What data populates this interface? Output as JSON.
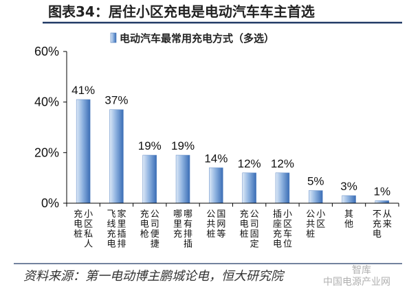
{
  "figure": {
    "title": "图表34：居住小区充电是电动汽车车主首选",
    "source": "资料来源：第一电动博主鹏城论电，恒大研究院",
    "watermark": [
      "智库",
      "中国电源产业网"
    ]
  },
  "colors": {
    "title_rule": "#1f3864",
    "bar_light": "#dde9f7",
    "bar_mid": "#8fb3e0",
    "bar_dark": "#3a6db5",
    "axis": "#000000"
  },
  "chart_data": {
    "type": "bar",
    "title": "",
    "legend": {
      "label": "电动汽车最常用充电方式（多选）",
      "placement": "top"
    },
    "categories": [
      "小区私人充电桩",
      "家里插排飞线充电",
      "公司便捷充电枪",
      "哪有排插哪里充",
      "公共桩",
      "公司固定充电桩",
      "小区车位插座充电",
      "公共桩小区",
      "其他",
      "不充电从来"
    ],
    "category_label_columns": [
      [
        "小区私人",
        "充电桩"
      ],
      [
        "家里插排",
        "飞线充电"
      ],
      [
        "公司便捷",
        "充电枪"
      ],
      [
        "哪有排插",
        "哪里充"
      ],
      [
        "国网等",
        "公共桩"
      ],
      [
        "公司固定",
        "充电桩"
      ],
      [
        "小区车位",
        "插座充电"
      ],
      [
        "小区",
        "公共桩"
      ],
      [
        "其他"
      ],
      [
        "从来",
        "不充电"
      ]
    ],
    "series": [
      {
        "name": "电动汽车最常用充电方式（多选）",
        "values": [
          41,
          37,
          19,
          19,
          14,
          12,
          12,
          5,
          3,
          1
        ],
        "labels": [
          "41%",
          "37%",
          "19%",
          "19%",
          "14%",
          "12%",
          "12%",
          "5%",
          "3%",
          "1%"
        ]
      }
    ],
    "ylim": [
      0,
      60
    ],
    "yticks": [
      0,
      20,
      40,
      60
    ],
    "ytick_labels": [
      "0%",
      "20%",
      "40%",
      "60%"
    ],
    "xlabel": "",
    "ylabel": "",
    "grid": false
  }
}
